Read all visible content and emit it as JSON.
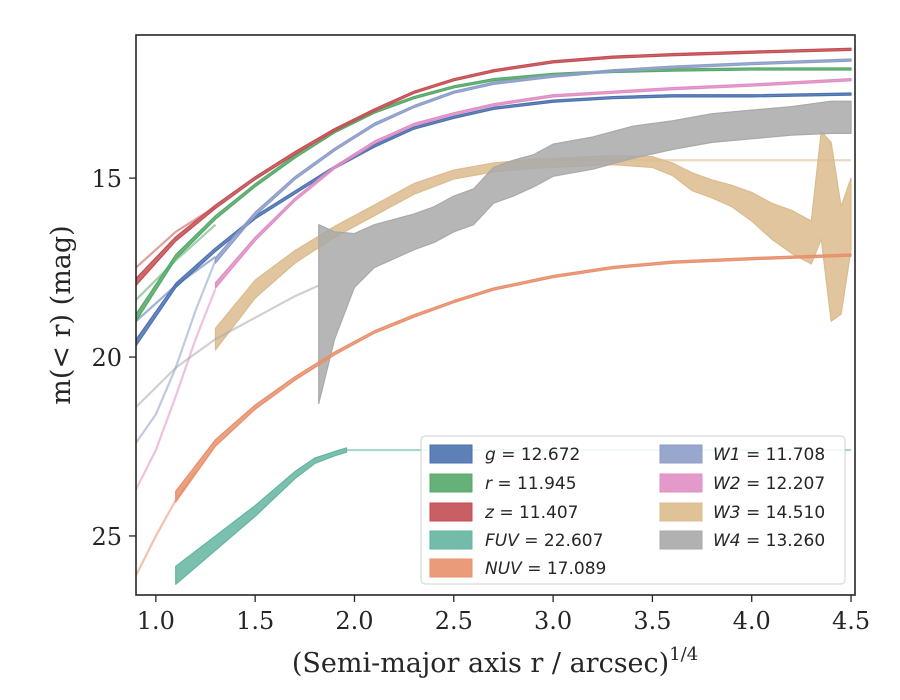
{
  "chart_data": {
    "type": "line",
    "title": "",
    "xlabel_main": "(Semi-major axis r / arcsec)",
    "xlabel_sup": "1/4",
    "ylabel": "m(< r) (mag)",
    "xlim": [
      0.9,
      4.52
    ],
    "ylim": [
      26.65,
      11.0
    ],
    "y_inverted": true,
    "xticks": [
      1.0,
      1.5,
      2.0,
      2.5,
      3.0,
      3.5,
      4.0,
      4.5
    ],
    "xtick_labels": [
      "1.0",
      "1.5",
      "2.0",
      "2.5",
      "3.0",
      "3.5",
      "4.0",
      "4.5"
    ],
    "yticks": [
      15,
      20,
      25
    ],
    "ytick_labels": [
      "15",
      "20",
      "25"
    ],
    "legend_position": "lower-right",
    "legend_columns": 2,
    "series": [
      {
        "name": "g = 12.672",
        "label_var": "g",
        "label_val": "12.672",
        "color": "#4c72b0",
        "x": [
          0.9,
          1.1,
          1.3,
          1.5,
          1.7,
          1.9,
          2.1,
          2.3,
          2.5,
          2.7,
          3.0,
          3.3,
          3.6,
          4.0,
          4.5
        ],
        "y": [
          19.6,
          18.0,
          17.0,
          16.1,
          15.4,
          14.7,
          14.1,
          13.6,
          13.3,
          13.05,
          12.85,
          12.75,
          12.7,
          12.7,
          12.65
        ],
        "width": [
          0.18,
          0.12,
          0.1,
          0.08,
          0.08,
          0.07,
          0.07,
          0.06,
          0.06,
          0.06,
          0.06,
          0.06,
          0.06,
          0.06,
          0.06
        ],
        "faint": {
          "x": [
            0.9,
            1.1,
            1.3
          ],
          "y": [
            19.0,
            18.0,
            17.2
          ]
        }
      },
      {
        "name": "r = 11.945",
        "label_var": "r",
        "label_val": "11.945",
        "color": "#55a868",
        "x": [
          0.9,
          1.1,
          1.3,
          1.5,
          1.7,
          1.9,
          2.1,
          2.3,
          2.5,
          2.7,
          3.0,
          3.3,
          3.6,
          4.0,
          4.5
        ],
        "y": [
          18.9,
          17.2,
          16.1,
          15.2,
          14.4,
          13.7,
          13.15,
          12.75,
          12.45,
          12.25,
          12.1,
          12.02,
          11.98,
          11.95,
          11.95
        ],
        "width": [
          0.2,
          0.12,
          0.1,
          0.08,
          0.08,
          0.07,
          0.07,
          0.06,
          0.06,
          0.06,
          0.06,
          0.06,
          0.06,
          0.06,
          0.06
        ],
        "faint": {
          "x": [
            0.9,
            1.1,
            1.3
          ],
          "y": [
            18.4,
            17.3,
            16.3
          ]
        }
      },
      {
        "name": "z = 11.407",
        "label_var": "z",
        "label_val": "11.407",
        "color": "#c44e52",
        "x": [
          0.9,
          1.1,
          1.3,
          1.5,
          1.7,
          1.9,
          2.1,
          2.3,
          2.5,
          2.7,
          3.0,
          3.3,
          3.6,
          4.0,
          4.5
        ],
        "y": [
          17.9,
          16.7,
          15.8,
          15.0,
          14.3,
          13.65,
          13.1,
          12.6,
          12.25,
          12.0,
          11.75,
          11.62,
          11.55,
          11.48,
          11.4
        ],
        "width": [
          0.2,
          0.12,
          0.1,
          0.08,
          0.08,
          0.07,
          0.07,
          0.06,
          0.06,
          0.06,
          0.06,
          0.06,
          0.06,
          0.06,
          0.06
        ],
        "faint": {
          "x": [
            0.9,
            1.1,
            1.3
          ],
          "y": [
            17.5,
            16.5,
            15.8
          ]
        }
      },
      {
        "name": "FUV = 22.607",
        "label_var": "FUV",
        "label_val": "22.607",
        "color": "#64b5a0",
        "x": [
          1.1,
          1.3,
          1.5,
          1.7,
          1.8,
          1.9,
          1.96
        ],
        "y": [
          26.1,
          25.2,
          24.3,
          23.3,
          22.9,
          22.7,
          22.6
        ],
        "width": [
          0.5,
          0.4,
          0.3,
          0.2,
          0.15,
          0.12,
          0.12
        ],
        "faint": {
          "x": [
            1.96,
            2.5,
            3.0,
            3.5,
            4.0,
            4.5
          ],
          "y": [
            22.6,
            22.6,
            22.6,
            22.6,
            22.6,
            22.6
          ]
        }
      },
      {
        "name": "NUV = 17.089",
        "label_var": "NUV",
        "label_val": "17.089",
        "color": "#e8906c",
        "x": [
          1.1,
          1.3,
          1.5,
          1.7,
          1.9,
          2.1,
          2.3,
          2.5,
          2.7,
          3.0,
          3.3,
          3.6,
          4.0,
          4.5
        ],
        "y": [
          23.9,
          22.4,
          21.4,
          20.6,
          19.9,
          19.3,
          18.85,
          18.45,
          18.1,
          17.75,
          17.5,
          17.35,
          17.25,
          17.15
        ],
        "width": [
          0.3,
          0.18,
          0.12,
          0.1,
          0.08,
          0.07,
          0.07,
          0.06,
          0.06,
          0.06,
          0.06,
          0.06,
          0.06,
          0.06
        ],
        "faint": {
          "x": [
            0.9,
            1.0,
            1.1,
            1.2
          ],
          "y": [
            26.1,
            25.0,
            24.0,
            23.2
          ]
        }
      },
      {
        "name": "W1 = 11.708",
        "label_var": "W1",
        "label_val": "11.708",
        "color": "#8c9dc8",
        "x": [
          1.3,
          1.5,
          1.7,
          1.9,
          2.1,
          2.3,
          2.5,
          2.7,
          3.0,
          3.3,
          3.6,
          4.0,
          4.5
        ],
        "y": [
          17.3,
          16.0,
          15.0,
          14.2,
          13.5,
          13.0,
          12.6,
          12.35,
          12.15,
          12.0,
          11.9,
          11.8,
          11.7
        ],
        "width": [
          0.15,
          0.1,
          0.08,
          0.07,
          0.07,
          0.06,
          0.06,
          0.06,
          0.06,
          0.06,
          0.06,
          0.06,
          0.06
        ],
        "faint": {
          "x": [
            0.9,
            1.0,
            1.1,
            1.2,
            1.3
          ],
          "y": [
            22.4,
            21.6,
            20.3,
            18.7,
            17.3
          ]
        }
      },
      {
        "name": "W2 = 12.207",
        "label_var": "W2",
        "label_val": "12.207",
        "color": "#e08ec3",
        "x": [
          1.3,
          1.5,
          1.7,
          1.9,
          2.1,
          2.3,
          2.5,
          2.7,
          3.0,
          3.3,
          3.6,
          4.0,
          4.5
        ],
        "y": [
          18.0,
          16.7,
          15.6,
          14.7,
          14.0,
          13.5,
          13.2,
          12.95,
          12.7,
          12.6,
          12.5,
          12.4,
          12.25
        ],
        "width": [
          0.15,
          0.1,
          0.08,
          0.07,
          0.07,
          0.06,
          0.06,
          0.06,
          0.06,
          0.06,
          0.06,
          0.06,
          0.06
        ],
        "faint": {
          "x": [
            0.9,
            1.0,
            1.1,
            1.2,
            1.3
          ],
          "y": [
            23.7,
            22.6,
            21.1,
            19.5,
            18.1
          ]
        }
      },
      {
        "name": "W3 = 14.510",
        "label_var": "W3",
        "label_val": "14.510",
        "color": "#dcbb8d",
        "x": [
          1.3,
          1.5,
          1.7,
          1.9,
          2.1,
          2.3,
          2.5,
          2.7,
          2.9,
          3.1,
          3.3,
          3.5,
          3.6,
          3.7,
          3.8,
          3.9,
          4.0,
          4.1,
          4.2,
          4.3,
          4.35,
          4.4,
          4.45,
          4.5
        ],
        "y": [
          19.5,
          18.1,
          17.2,
          16.5,
          15.9,
          15.3,
          14.9,
          14.7,
          14.6,
          14.55,
          14.5,
          14.55,
          14.75,
          15.1,
          15.3,
          15.5,
          15.8,
          16.2,
          16.5,
          16.8,
          15.2,
          16.5,
          17.3,
          16.0
        ],
        "width": [
          0.6,
          0.5,
          0.35,
          0.3,
          0.3,
          0.3,
          0.25,
          0.25,
          0.25,
          0.25,
          0.25,
          0.3,
          0.35,
          0.5,
          0.5,
          0.6,
          0.8,
          1.0,
          1.2,
          1.2,
          3.0,
          5.0,
          3.0,
          2.0
        ],
        "faint": {
          "x": [
            3.0,
            3.5,
            4.0,
            4.5
          ],
          "y": [
            14.5,
            14.5,
            14.5,
            14.5
          ]
        }
      },
      {
        "name": "W4 = 13.260",
        "label_var": "W4",
        "label_val": "13.260",
        "color": "#a9a9a9",
        "x": [
          1.82,
          1.9,
          2.0,
          2.1,
          2.2,
          2.3,
          2.4,
          2.5,
          2.6,
          2.7,
          2.8,
          2.9,
          3.0,
          3.2,
          3.4,
          3.6,
          3.8,
          4.0,
          4.2,
          4.4,
          4.5
        ],
        "y": [
          18.8,
          18.0,
          17.3,
          16.9,
          16.7,
          16.5,
          16.3,
          16.0,
          15.8,
          15.2,
          15.0,
          14.8,
          14.5,
          14.3,
          14.0,
          13.8,
          13.6,
          13.5,
          13.4,
          13.3,
          13.3
        ],
        "width": [
          5.0,
          3.0,
          1.5,
          1.2,
          1.1,
          1.0,
          1.0,
          1.0,
          1.0,
          1.0,
          1.0,
          0.9,
          0.9,
          0.9,
          0.9,
          0.8,
          0.8,
          0.8,
          0.8,
          0.9,
          0.9
        ],
        "faint": {
          "x": [
            0.9,
            1.1,
            1.3,
            1.5,
            1.7,
            1.82
          ],
          "y": [
            21.4,
            20.3,
            19.5,
            18.9,
            18.3,
            18.0
          ]
        }
      }
    ]
  }
}
